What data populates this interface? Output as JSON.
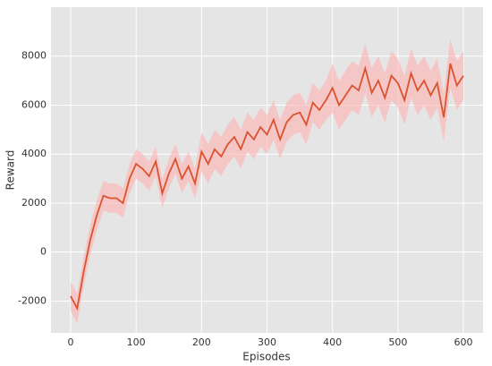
{
  "chart_data": {
    "type": "line",
    "xlabel": "Episodes",
    "ylabel": "Reward",
    "x": [
      0,
      10,
      20,
      30,
      40,
      50,
      60,
      70,
      80,
      90,
      100,
      110,
      120,
      130,
      140,
      150,
      160,
      170,
      180,
      190,
      200,
      210,
      220,
      230,
      240,
      250,
      260,
      270,
      280,
      290,
      300,
      310,
      320,
      330,
      340,
      350,
      360,
      370,
      380,
      390,
      400,
      410,
      420,
      430,
      440,
      450,
      460,
      470,
      480,
      490,
      500,
      510,
      520,
      530,
      540,
      550,
      560,
      570,
      580,
      590,
      600
    ],
    "series": [
      {
        "color": "#d9542e",
        "band_color": "#ffb0b0",
        "values": [
          -1800,
          -2300,
          -800,
          500,
          1500,
          2300,
          2200,
          2200,
          2000,
          3000,
          3600,
          3400,
          3100,
          3700,
          2400,
          3200,
          3800,
          3000,
          3500,
          2800,
          4100,
          3600,
          4200,
          3900,
          4400,
          4700,
          4200,
          4900,
          4600,
          5100,
          4800,
          5400,
          4600,
          5300,
          5600,
          5700,
          5200,
          6100,
          5800,
          6200,
          6700,
          6000,
          6400,
          6800,
          6600,
          7500,
          6500,
          7000,
          6300,
          7200,
          6900,
          6200,
          7300,
          6600,
          7000,
          6400,
          6900,
          5500,
          7700,
          6800,
          7200
        ],
        "band_lower": [
          -2400,
          -2900,
          -1400,
          -100,
          900,
          1700,
          1600,
          1600,
          1400,
          2400,
          3000,
          2800,
          2500,
          3100,
          1800,
          2600,
          3200,
          2400,
          2900,
          2200,
          3300,
          2800,
          3400,
          3100,
          3600,
          3900,
          3400,
          4100,
          3800,
          4300,
          4000,
          4600,
          3800,
          4500,
          4800,
          4900,
          4400,
          5300,
          5000,
          5400,
          5700,
          5000,
          5400,
          5800,
          5600,
          6500,
          5500,
          6000,
          5300,
          6200,
          5900,
          5200,
          6300,
          5600,
          6000,
          5400,
          5900,
          4500,
          6700,
          5800,
          6200
        ],
        "band_upper": [
          -1200,
          -1700,
          -200,
          1100,
          2100,
          2900,
          2800,
          2800,
          2600,
          3600,
          4200,
          4000,
          3700,
          4300,
          3000,
          3800,
          4400,
          3600,
          4100,
          3400,
          4900,
          4400,
          5000,
          4700,
          5200,
          5500,
          5000,
          5700,
          5400,
          5900,
          5600,
          6200,
          5400,
          6100,
          6400,
          6500,
          6000,
          6900,
          6600,
          7000,
          7700,
          7000,
          7400,
          7800,
          7600,
          8500,
          7500,
          8000,
          7300,
          8200,
          7900,
          7200,
          8300,
          7600,
          8000,
          7400,
          7900,
          6500,
          8700,
          7800,
          8200
        ]
      }
    ],
    "xlim": [
      -30,
      630
    ],
    "ylim": [
      -3300,
      10000
    ],
    "xticks": [
      0,
      100,
      200,
      300,
      400,
      500,
      600
    ],
    "yticks": [
      -2000,
      0,
      2000,
      4000,
      6000,
      8000
    ],
    "grid": true,
    "background": "#e5e5e5"
  }
}
